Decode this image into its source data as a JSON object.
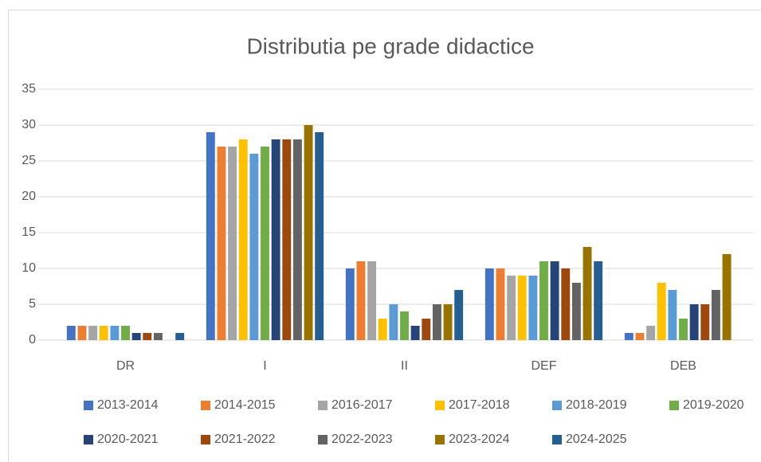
{
  "chart_data": {
    "type": "bar",
    "title": "Distributia pe grade didactice",
    "categories": [
      "DR",
      "I",
      "II",
      "DEF",
      "DEB"
    ],
    "series": [
      {
        "name": "2013-2014",
        "color": "#4472c4",
        "values": [
          2,
          29,
          10,
          10,
          1
        ]
      },
      {
        "name": "2014-2015",
        "color": "#ed7d31",
        "values": [
          2,
          27,
          11,
          10,
          1
        ]
      },
      {
        "name": "2016-2017",
        "color": "#a5a5a5",
        "values": [
          2,
          27,
          11,
          9,
          2
        ]
      },
      {
        "name": "2017-2018",
        "color": "#ffc000",
        "values": [
          2,
          28,
          3,
          9,
          8
        ]
      },
      {
        "name": "2018-2019",
        "color": "#5b9bd5",
        "values": [
          2,
          26,
          5,
          9,
          7
        ]
      },
      {
        "name": "2019-2020",
        "color": "#70ad47",
        "values": [
          2,
          27,
          4,
          11,
          3
        ]
      },
      {
        "name": "2020-2021",
        "color": "#264478",
        "values": [
          1,
          28,
          2,
          11,
          5
        ]
      },
      {
        "name": "2021-2022",
        "color": "#9e480e",
        "values": [
          1,
          28,
          3,
          10,
          5
        ]
      },
      {
        "name": "2022-2023",
        "color": "#636363",
        "values": [
          1,
          28,
          5,
          8,
          7
        ]
      },
      {
        "name": "2023-2024",
        "color": "#997300",
        "values": [
          0,
          30,
          5,
          13,
          12
        ]
      },
      {
        "name": "2024-2025",
        "color": "#255e91",
        "values": [
          1,
          29,
          7,
          11,
          0
        ]
      }
    ],
    "ylim": [
      0,
      35
    ],
    "yticks": [
      0,
      5,
      10,
      15,
      20,
      25,
      30,
      35
    ],
    "grid": true,
    "legend": "bottom"
  }
}
